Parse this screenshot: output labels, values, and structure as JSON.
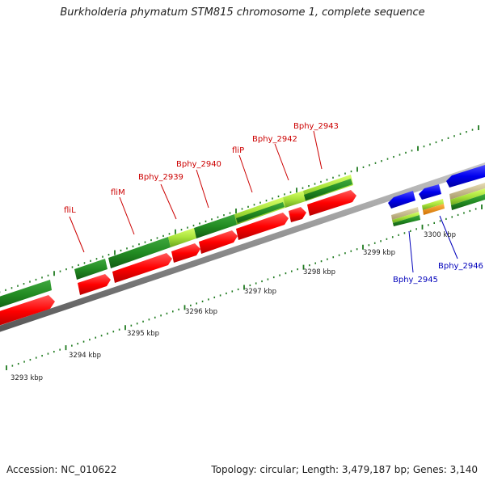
{
  "title": "Burkholderia phymatum STM815 chromosome 1, complete sequence",
  "footer": {
    "accession": "Accession: NC_010622",
    "summary": "Topology: circular; Length: 3,479,187 bp; Genes: 3,140"
  },
  "scale_labels": [
    "3293 kbp",
    "3294 kbp",
    "3295 kbp",
    "3296 kbp",
    "3297 kbp",
    "3298 kbp",
    "3299 kbp",
    "3300 kbp"
  ],
  "gene_labels": [
    {
      "text": "fliL",
      "strand": "forward"
    },
    {
      "text": "fliM",
      "strand": "forward"
    },
    {
      "text": "Bphy_2939",
      "strand": "forward"
    },
    {
      "text": "Bphy_2940",
      "strand": "forward"
    },
    {
      "text": "fliP",
      "strand": "forward"
    },
    {
      "text": "Bphy_2942",
      "strand": "forward"
    },
    {
      "text": "Bphy_2943",
      "strand": "forward"
    },
    {
      "text": "Bphy_2945",
      "strand": "reverse"
    },
    {
      "text": "Bphy_2946",
      "strand": "reverse"
    }
  ],
  "colors": {
    "forward_gene": "#ff0000",
    "reverse_gene": "#0000ee",
    "cds_dark": "#228b22",
    "cds_light": "#9acd32",
    "backbone": "#8c8c8c",
    "tick": "#1f7a1f",
    "forward_label": "#cc0000",
    "reverse_label": "#0000bb"
  }
}
